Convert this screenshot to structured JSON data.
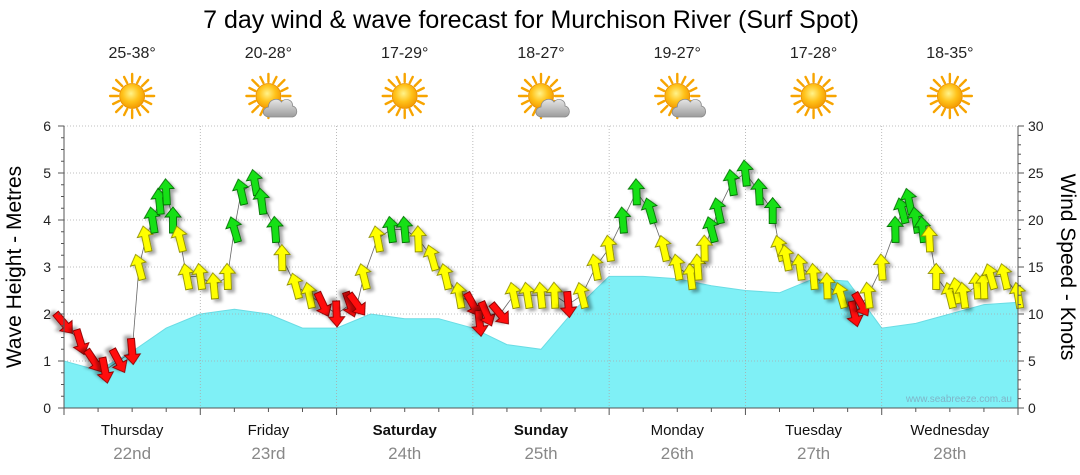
{
  "chart_data": {
    "type": "area",
    "title": "7 day wind & wave forecast for Murchison River  (Surf Spot)",
    "ylabel_left": "Wave Height - Metres",
    "ylabel_right": "Wind Speed - Knots",
    "ylim_left": [
      0,
      6
    ],
    "ylim_right": [
      0,
      30
    ],
    "yticks_left": [
      "0",
      "1",
      "2",
      "3",
      "4",
      "5",
      "6"
    ],
    "yticks_right": [
      "0",
      "5",
      "10",
      "15",
      "20",
      "25",
      "30"
    ],
    "watermark": "www.seabreeze.com.au",
    "days": [
      {
        "day": "Thursday",
        "date": "22nd",
        "bold": false,
        "temp": "25-38°",
        "weather": "sunny"
      },
      {
        "day": "Friday",
        "date": "23rd",
        "bold": false,
        "temp": "20-28°",
        "weather": "partly-cloudy"
      },
      {
        "day": "Saturday",
        "date": "24th",
        "bold": true,
        "temp": "17-29°",
        "weather": "sunny"
      },
      {
        "day": "Sunday",
        "date": "25th",
        "bold": true,
        "temp": "18-27°",
        "weather": "partly-cloudy"
      },
      {
        "day": "Monday",
        "date": "26th",
        "bold": false,
        "temp": "19-27°",
        "weather": "partly-cloudy"
      },
      {
        "day": "Tuesday",
        "date": "27th",
        "bold": false,
        "temp": "17-28°",
        "weather": "sunny"
      },
      {
        "day": "Wednesday",
        "date": "28th",
        "bold": false,
        "temp": "18-35°",
        "weather": "sunny"
      }
    ],
    "wave_series": {
      "name": "Wave Height (m)",
      "x_days": [
        0,
        0.25,
        0.5,
        0.75,
        1,
        1.25,
        1.5,
        1.75,
        2,
        2.25,
        2.5,
        2.75,
        3,
        3.25,
        3.5,
        3.75,
        4,
        4.25,
        4.5,
        4.75,
        5,
        5.25,
        5.5,
        5.75,
        6,
        6.25,
        6.5,
        6.75,
        7
      ],
      "values": [
        1.0,
        0.8,
        1.2,
        1.7,
        2.0,
        2.1,
        2.0,
        1.7,
        1.7,
        2.0,
        1.9,
        1.9,
        1.7,
        1.35,
        1.25,
        2.1,
        2.8,
        2.8,
        2.75,
        2.6,
        2.5,
        2.45,
        2.75,
        2.7,
        1.7,
        1.8,
        2.0,
        2.2,
        2.25
      ]
    },
    "wind_series": {
      "name": "Wind Speed (knots)",
      "x_days": [
        0,
        0.12,
        0.22,
        0.3,
        0.4,
        0.5,
        0.55,
        0.6,
        0.65,
        0.7,
        0.75,
        0.8,
        0.85,
        0.9,
        1.0,
        1.1,
        1.2,
        1.25,
        1.3,
        1.4,
        1.45,
        1.55,
        1.6,
        1.7,
        1.8,
        1.9,
        2.0,
        2.1,
        2.15,
        2.2,
        2.3,
        2.4,
        2.5,
        2.6,
        2.7,
        2.8,
        2.9,
        3.0,
        3.05,
        3.1,
        3.2,
        3.3,
        3.4,
        3.5,
        3.6,
        3.7,
        3.8,
        3.9,
        4.0,
        4.1,
        4.2,
        4.3,
        4.4,
        4.5,
        4.6,
        4.65,
        4.7,
        4.75,
        4.8,
        4.9,
        5.0,
        5.1,
        5.2,
        5.25,
        5.3,
        5.4,
        5.5,
        5.6,
        5.7,
        5.8,
        5.85,
        5.9,
        6.0,
        6.1,
        6.15,
        6.2,
        6.25,
        6.3,
        6.35,
        6.4,
        6.5,
        6.55,
        6.6,
        6.7,
        6.75,
        6.8,
        6.9,
        7.0
      ],
      "values": [
        9,
        7,
        5,
        4,
        5,
        6,
        15,
        18,
        20,
        22,
        23,
        20,
        18,
        14,
        14,
        13,
        14,
        19,
        23,
        24,
        22,
        19,
        16,
        13,
        12,
        11,
        10,
        11,
        11,
        14,
        18,
        19,
        19,
        18,
        16,
        14,
        12,
        11,
        9,
        10,
        10,
        12,
        12,
        12,
        12,
        11,
        12,
        15,
        17,
        20,
        23,
        21,
        17,
        15,
        14,
        15,
        17,
        19,
        21,
        24,
        25,
        23,
        21,
        17,
        16,
        15,
        14,
        13,
        12,
        10,
        11,
        12,
        15,
        19,
        21,
        22,
        20,
        19,
        18,
        14,
        12,
        12.5,
        12,
        13,
        13,
        14,
        14,
        12
      ]
    }
  }
}
